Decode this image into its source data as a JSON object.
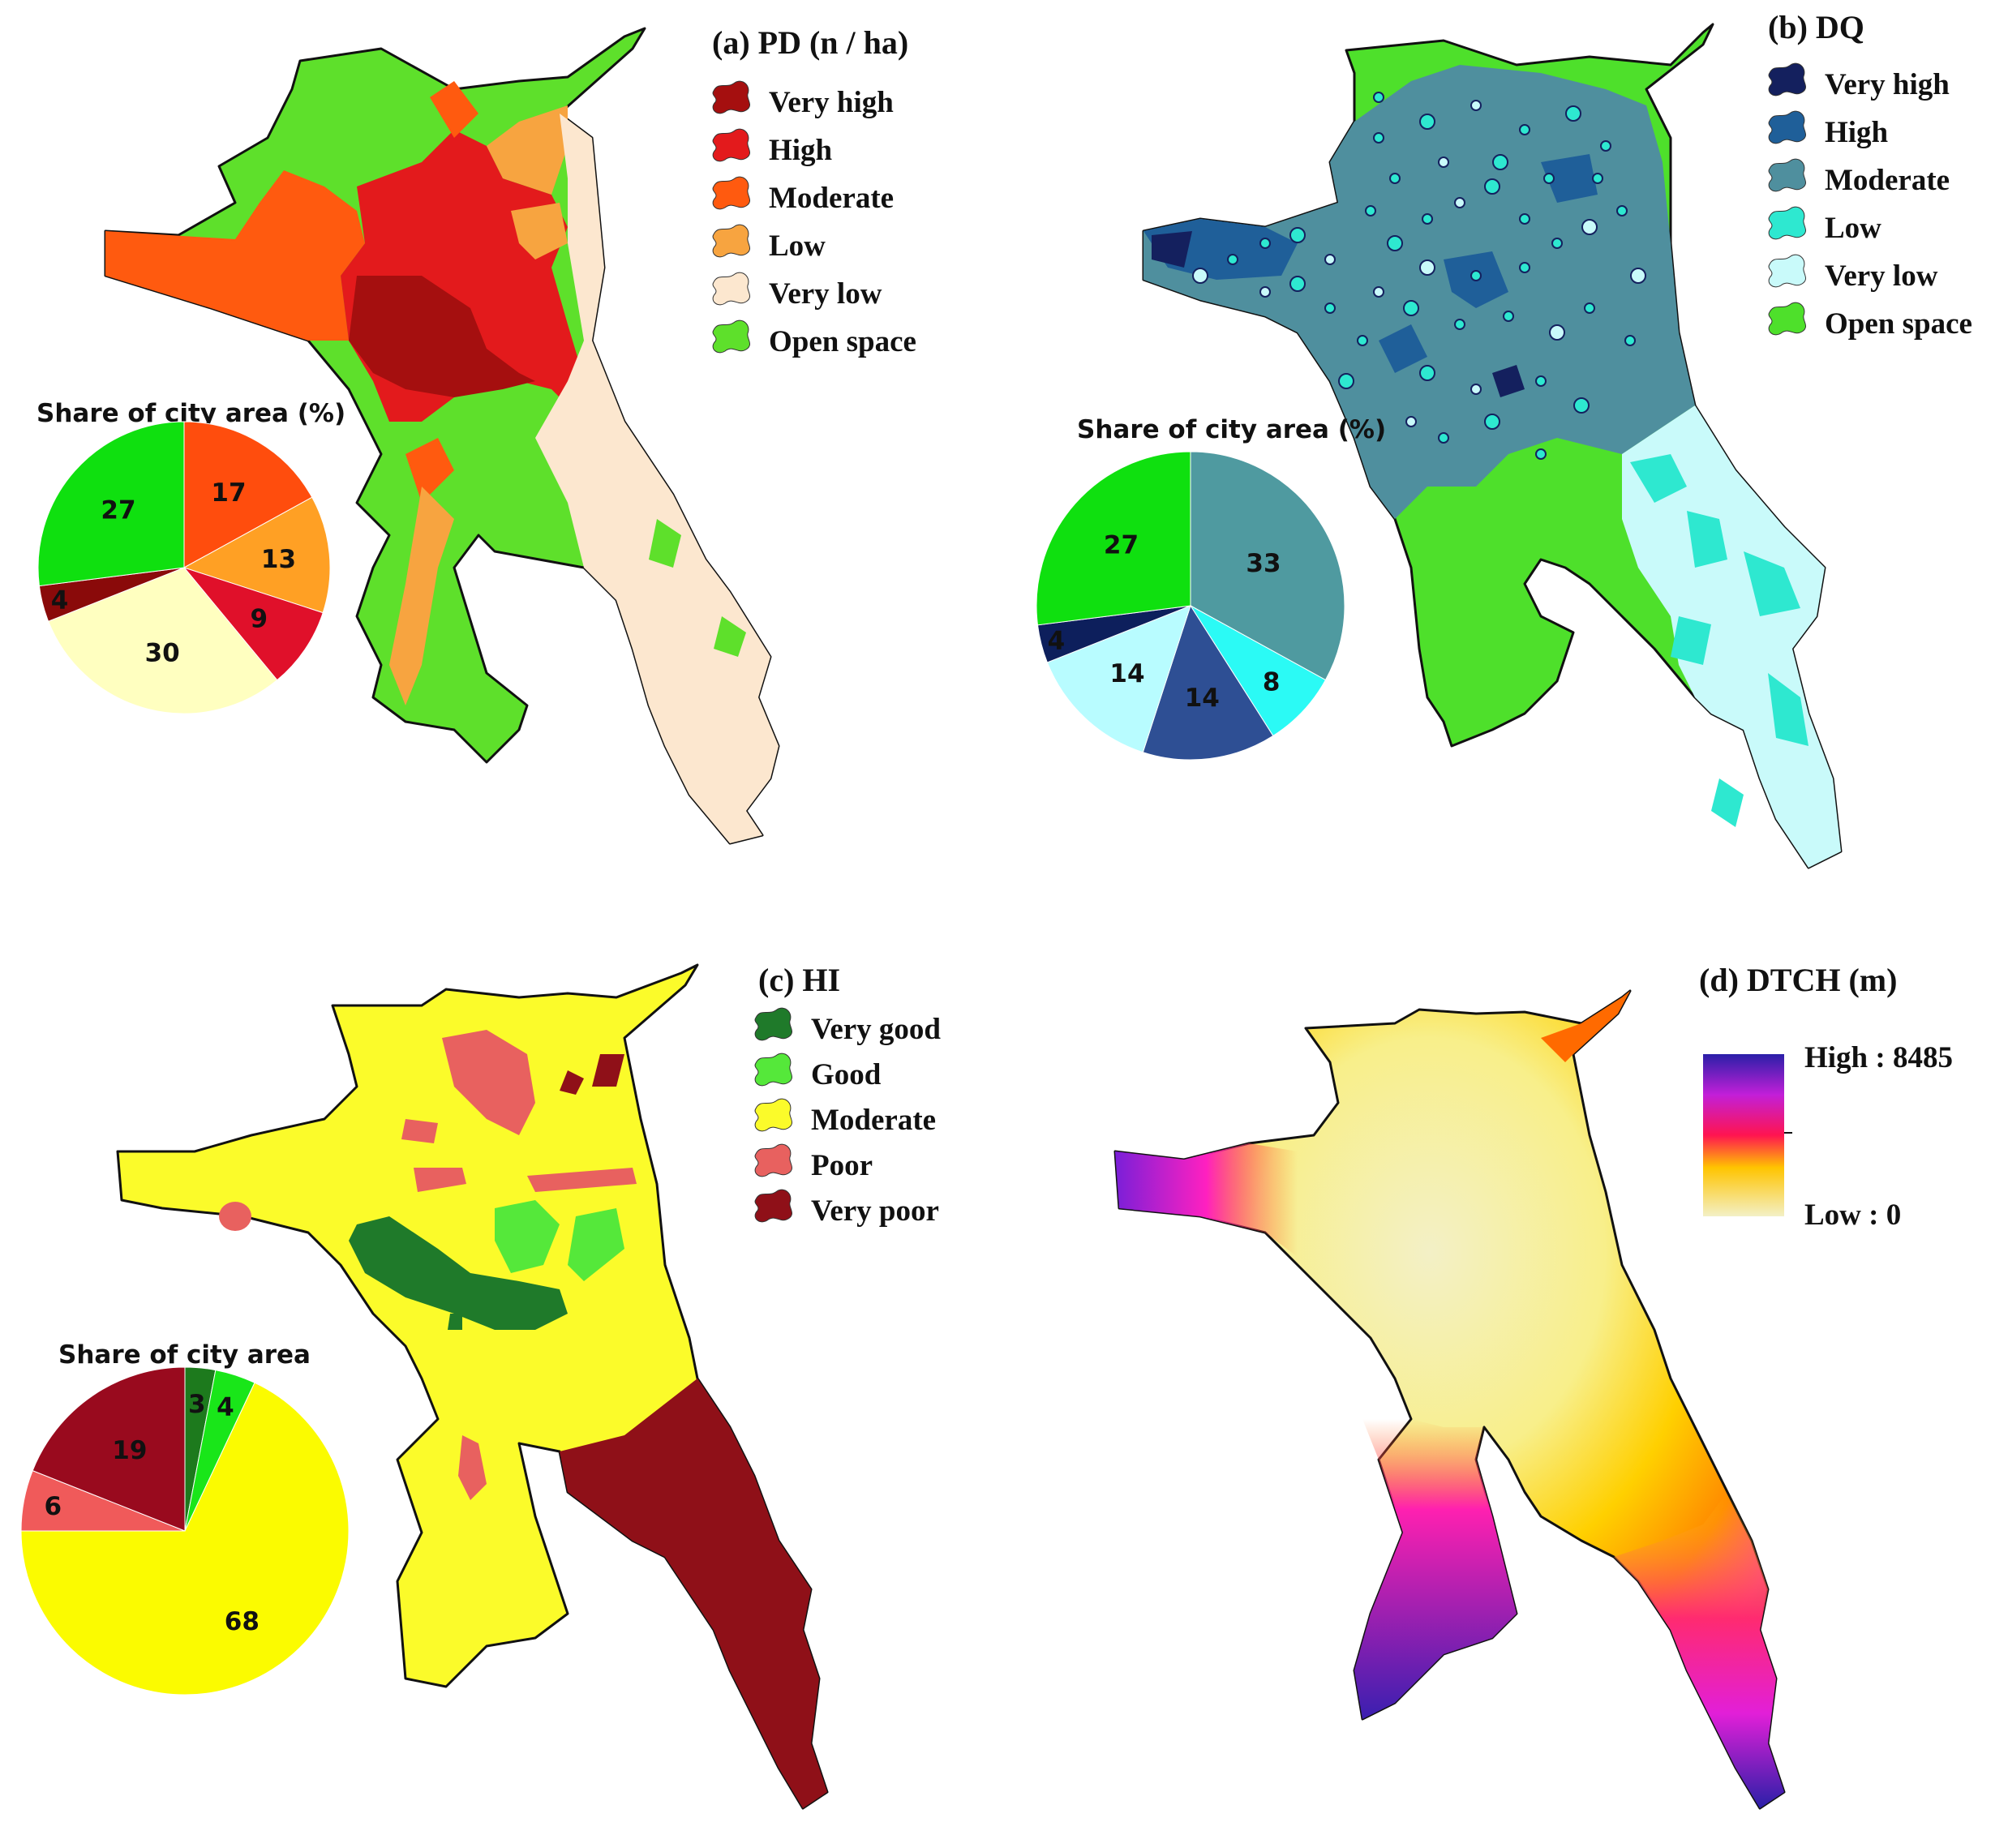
{
  "panels": {
    "a": {
      "title": "(a) PD (n / ha)",
      "legend": [
        {
          "label": "Very high",
          "color": "#a50f0f"
        },
        {
          "label": "High",
          "color": "#e31a1c"
        },
        {
          "label": "Moderate",
          "color": "#ff5a0f"
        },
        {
          "label": "Low",
          "color": "#f7a440"
        },
        {
          "label": "Very low",
          "color": "#fce7cf"
        },
        {
          "label": "Open space",
          "color": "#5ee02b"
        }
      ],
      "pie_title": "Share of city area (%)"
    },
    "b": {
      "title": "(b) DQ",
      "legend": [
        {
          "label": "Very high",
          "color": "#14205e"
        },
        {
          "label": "High",
          "color": "#1f5f99"
        },
        {
          "label": "Moderate",
          "color": "#4f8f9e"
        },
        {
          "label": "Low",
          "color": "#2ee8d0"
        },
        {
          "label": "Very low",
          "color": "#c9fafa"
        },
        {
          "label": "Open space",
          "color": "#4ee02b"
        }
      ],
      "pie_title": "Share of city area (%)"
    },
    "c": {
      "title": "(c) HI",
      "legend": [
        {
          "label": "Very good",
          "color": "#1f7a2a"
        },
        {
          "label": "Good",
          "color": "#55e83a"
        },
        {
          "label": "Moderate",
          "color": "#fbfb2a"
        },
        {
          "label": "Poor",
          "color": "#e8615f"
        },
        {
          "label": "Very poor",
          "color": "#8f1018"
        }
      ],
      "pie_title": "Share of city area"
    },
    "d": {
      "title": "(d) DTCH (m)",
      "high_label": "High : 8485",
      "low_label": "Low : 0"
    }
  },
  "chart_data": [
    {
      "type": "pie",
      "title": "Share of city area (%)",
      "slices": [
        {
          "label": "Moderate",
          "value": 17,
          "color": "#ff4d0d"
        },
        {
          "label": "Low",
          "value": 13,
          "color": "#ffa024"
        },
        {
          "label": "High",
          "value": 9,
          "color": "#e0102a"
        },
        {
          "label": "Very low",
          "value": 30,
          "color": "#ffffc0"
        },
        {
          "label": "Very high",
          "value": 4,
          "color": "#8a0a0a"
        },
        {
          "label": "Open space",
          "value": 27,
          "color": "#0fe00f"
        }
      ]
    },
    {
      "type": "pie",
      "title": "Share of city area (%)",
      "slices": [
        {
          "label": "Moderate",
          "value": 33,
          "color": "#4f9aa0"
        },
        {
          "label": "Low",
          "value": 8,
          "color": "#2bfaf5"
        },
        {
          "label": "High",
          "value": 14,
          "color": "#2e4f94"
        },
        {
          "label": "Very low",
          "value": 14,
          "color": "#b8fcff"
        },
        {
          "label": "Very high",
          "value": 4,
          "color": "#0d1f5c"
        },
        {
          "label": "Open space",
          "value": 27,
          "color": "#0fe00f"
        }
      ]
    },
    {
      "type": "pie",
      "title": "Share of city area",
      "slices": [
        {
          "label": "Very good",
          "value": 3,
          "color": "#1d7a1d"
        },
        {
          "label": "Good",
          "value": 4,
          "color": "#19e619"
        },
        {
          "label": "Moderate",
          "value": 68,
          "color": "#fbfb00"
        },
        {
          "label": "Poor",
          "value": 6,
          "color": "#f05a5a"
        },
        {
          "label": "Very poor",
          "value": 19,
          "color": "#990a1e"
        }
      ]
    }
  ]
}
